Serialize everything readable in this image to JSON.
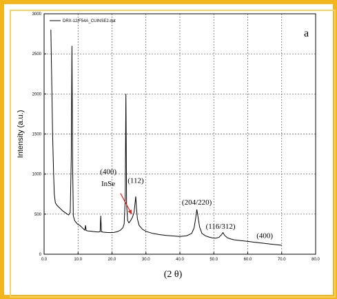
{
  "chart_data": {
    "type": "line",
    "legend_label": "DRX-12/F54A_CUINSE2.dat",
    "panel_label": "a",
    "ylabel": "Intensity (a.u.)",
    "xlabel": "(2 θ)",
    "xlim": [
      0,
      80
    ],
    "ylim": [
      0,
      3000
    ],
    "x_ticks": [
      "0.0",
      "10.0",
      "20.0",
      "30.0",
      "40.0",
      "50.0",
      "60.0",
      "70.0",
      "80.0"
    ],
    "y_ticks": [
      "0",
      "500",
      "1000",
      "1500",
      "2000",
      "2500",
      "3000"
    ],
    "grid": true,
    "legend_position": "top-left",
    "colors": {
      "line": "#000000",
      "arrow": "#e0201c",
      "frame": "#f2b51c"
    },
    "series": [
      {
        "points": [
          [
            2.0,
            2800
          ],
          [
            2.2,
            2300
          ],
          [
            2.5,
            1500
          ],
          [
            2.8,
            1000
          ],
          [
            3.0,
            750
          ],
          [
            3.3,
            640
          ],
          [
            3.8,
            610
          ],
          [
            4.5,
            580
          ],
          [
            5.5,
            540
          ],
          [
            6.5,
            510
          ],
          [
            7.2,
            490
          ],
          [
            7.7,
            520
          ],
          [
            8.0,
            1200
          ],
          [
            8.2,
            2600
          ],
          [
            8.4,
            1100
          ],
          [
            8.6,
            480
          ],
          [
            9.0,
            420
          ],
          [
            9.5,
            390
          ],
          [
            10.0,
            370
          ],
          [
            10.5,
            360
          ],
          [
            11.0,
            340
          ],
          [
            11.5,
            320
          ],
          [
            12.0,
            300
          ],
          [
            12.2,
            360
          ],
          [
            12.4,
            295
          ],
          [
            13.0,
            290
          ],
          [
            14.0,
            285
          ],
          [
            15.0,
            280
          ],
          [
            16.0,
            278
          ],
          [
            16.5,
            282
          ],
          [
            16.7,
            480
          ],
          [
            16.9,
            280
          ],
          [
            17.5,
            275
          ],
          [
            18.5,
            272
          ],
          [
            19.5,
            270
          ],
          [
            20.5,
            272
          ],
          [
            21.5,
            280
          ],
          [
            22.5,
            300
          ],
          [
            23.2,
            330
          ],
          [
            23.6,
            380
          ],
          [
            23.9,
            700
          ],
          [
            24.1,
            2000
          ],
          [
            24.3,
            620
          ],
          [
            24.6,
            420
          ],
          [
            25.0,
            390
          ],
          [
            25.5,
            420
          ],
          [
            26.0,
            460
          ],
          [
            26.5,
            520
          ],
          [
            27.0,
            720
          ],
          [
            27.2,
            580
          ],
          [
            27.5,
            440
          ],
          [
            28.0,
            360
          ],
          [
            29.0,
            310
          ],
          [
            30.0,
            285
          ],
          [
            32.0,
            260
          ],
          [
            34.0,
            245
          ],
          [
            36.0,
            235
          ],
          [
            38.0,
            228
          ],
          [
            40.0,
            222
          ],
          [
            42.0,
            230
          ],
          [
            43.5,
            260
          ],
          [
            44.2,
            330
          ],
          [
            44.7,
            460
          ],
          [
            45.0,
            560
          ],
          [
            45.3,
            480
          ],
          [
            45.8,
            340
          ],
          [
            46.5,
            260
          ],
          [
            47.5,
            230
          ],
          [
            48.5,
            215
          ],
          [
            49.5,
            205
          ],
          [
            50.5,
            200
          ],
          [
            51.5,
            210
          ],
          [
            52.2,
            240
          ],
          [
            52.7,
            270
          ],
          [
            53.2,
            235
          ],
          [
            54.0,
            205
          ],
          [
            55.0,
            190
          ],
          [
            56.0,
            180
          ],
          [
            58.0,
            170
          ],
          [
            60.0,
            160
          ],
          [
            62.0,
            150
          ],
          [
            64.0,
            140
          ],
          [
            66.0,
            130
          ],
          [
            68.0,
            120
          ],
          [
            70.0,
            112
          ]
        ]
      }
    ],
    "annotations": [
      {
        "text": "(400)",
        "x": 18.9,
        "y": 1000
      },
      {
        "text": "InSe",
        "x": 18.9,
        "y": 850
      },
      {
        "text": "(112)",
        "x": 27.0,
        "y": 890
      },
      {
        "text": "(204/220)",
        "x": 45.0,
        "y": 620
      },
      {
        "text": "(116/312)",
        "x": 52.0,
        "y": 320
      },
      {
        "text": "(400)",
        "x": 65.0,
        "y": 200
      }
    ],
    "arrow": {
      "from": [
        22.5,
        760
      ],
      "to": [
        25.8,
        500
      ]
    }
  }
}
